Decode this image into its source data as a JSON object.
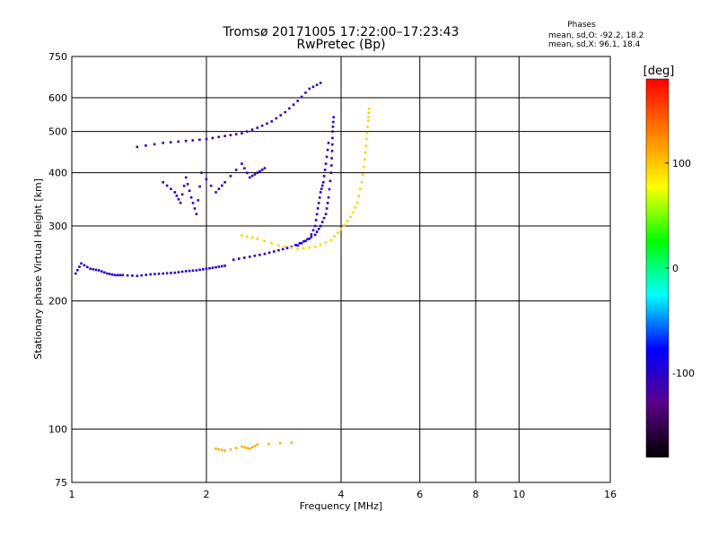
{
  "chart_data": {
    "type": "scatter",
    "title": "Tromsø 20171005 17:22:00–17:23:43",
    "subtitle": "RwPretec (Bp)",
    "xlabel": "Frequency [MHz]",
    "ylabel": "Stationary phase Virtual Height [km]",
    "x_scale": "log",
    "y_scale": "log",
    "xlim": [
      1,
      16
    ],
    "ylim": [
      75,
      750
    ],
    "x_ticks": [
      "1",
      "2",
      "4",
      "6",
      "8",
      "10",
      "16"
    ],
    "x_tick_values": [
      1,
      2,
      4,
      6,
      8,
      10,
      16
    ],
    "y_ticks": [
      "75",
      "100",
      "200",
      "300",
      "400",
      "500",
      "600",
      "750"
    ],
    "y_tick_values": [
      75,
      100,
      200,
      300,
      400,
      500,
      600,
      750
    ],
    "grid": true,
    "legend": {
      "title": "Phases",
      "line1": "mean, sd,O: -92.2, 18.2",
      "line2": "mean, sd,X: 96.1, 18.4"
    },
    "colorbar": {
      "label": "[deg]",
      "range": [
        -180,
        180
      ],
      "ticks": [
        "100",
        "0",
        "-100"
      ],
      "tick_values": [
        100,
        0,
        -100
      ],
      "colors": [
        "#000000",
        "#5a0088",
        "#0000ff",
        "#00ffff",
        "#00ff00",
        "#ffff00",
        "#ff8000",
        "#ff0000"
      ]
    },
    "series": [
      {
        "name": "O",
        "traces": [
          {
            "phase": -100,
            "points": [
              [
                1.02,
                232
              ],
              [
                1.05,
                245
              ],
              [
                1.1,
                238
              ],
              [
                1.15,
                236
              ],
              [
                1.2,
                232
              ],
              [
                1.25,
                230
              ],
              [
                1.3,
                230
              ],
              [
                1.4,
                229
              ],
              [
                1.5,
                231
              ],
              [
                1.6,
                232
              ],
              [
                1.7,
                233
              ],
              [
                1.8,
                235
              ],
              [
                1.9,
                236
              ],
              [
                2.0,
                238
              ],
              [
                2.1,
                240
              ],
              [
                2.2,
                242
              ]
            ]
          },
          {
            "phase": -100,
            "points": [
              [
                2.3,
                250
              ],
              [
                2.5,
                254
              ],
              [
                2.7,
                258
              ],
              [
                2.9,
                263
              ],
              [
                3.1,
                268
              ],
              [
                3.3,
                276
              ],
              [
                3.5,
                286
              ],
              [
                3.6,
                300
              ],
              [
                3.7,
                320
              ],
              [
                3.75,
                350
              ],
              [
                3.8,
                400
              ],
              [
                3.82,
                450
              ],
              [
                3.83,
                500
              ],
              [
                3.85,
                540
              ]
            ]
          },
          {
            "phase": -95,
            "points": [
              [
                3.2,
                270
              ],
              [
                3.4,
                280
              ],
              [
                3.5,
                300
              ],
              [
                3.55,
                330
              ],
              [
                3.6,
                360
              ],
              [
                3.65,
                380
              ],
              [
                3.7,
                420
              ],
              [
                3.75,
                470
              ]
            ]
          },
          {
            "phase": -110,
            "points": [
              [
                1.4,
                460
              ],
              [
                1.6,
                470
              ],
              [
                1.8,
                475
              ],
              [
                2.0,
                480
              ],
              [
                2.2,
                488
              ],
              [
                2.4,
                495
              ],
              [
                2.6,
                510
              ],
              [
                2.8,
                528
              ],
              [
                3.0,
                555
              ],
              [
                3.2,
                590
              ],
              [
                3.4,
                630
              ],
              [
                3.6,
                650
              ]
            ]
          },
          {
            "phase": -105,
            "points": [
              [
                1.6,
                380
              ],
              [
                1.7,
                360
              ],
              [
                1.75,
                340
              ],
              [
                1.8,
                390
              ],
              [
                1.85,
                350
              ],
              [
                1.9,
                320
              ],
              [
                1.95,
                400
              ],
              [
                2.1,
                360
              ],
              [
                2.2,
                380
              ],
              [
                2.4,
                420
              ],
              [
                2.5,
                390
              ],
              [
                2.6,
                400
              ],
              [
                2.7,
                410
              ]
            ]
          }
        ]
      },
      {
        "name": "X",
        "traces": [
          {
            "phase": 95,
            "points": [
              [
                2.4,
                285
              ],
              [
                2.6,
                280
              ],
              [
                2.9,
                270
              ],
              [
                3.2,
                265
              ],
              [
                3.5,
                268
              ],
              [
                3.8,
                278
              ],
              [
                4.0,
                295
              ],
              [
                4.2,
                315
              ],
              [
                4.35,
                340
              ],
              [
                4.45,
                380
              ],
              [
                4.52,
                430
              ],
              [
                4.56,
                480
              ],
              [
                4.6,
                530
              ],
              [
                4.62,
                565
              ]
            ]
          },
          {
            "phase": 110,
            "points": [
              [
                2.1,
                90
              ],
              [
                2.2,
                89
              ],
              [
                2.4,
                91
              ],
              [
                2.5,
                90
              ],
              [
                2.6,
                92
              ],
              [
                3.1,
                93
              ]
            ]
          }
        ]
      }
    ]
  }
}
